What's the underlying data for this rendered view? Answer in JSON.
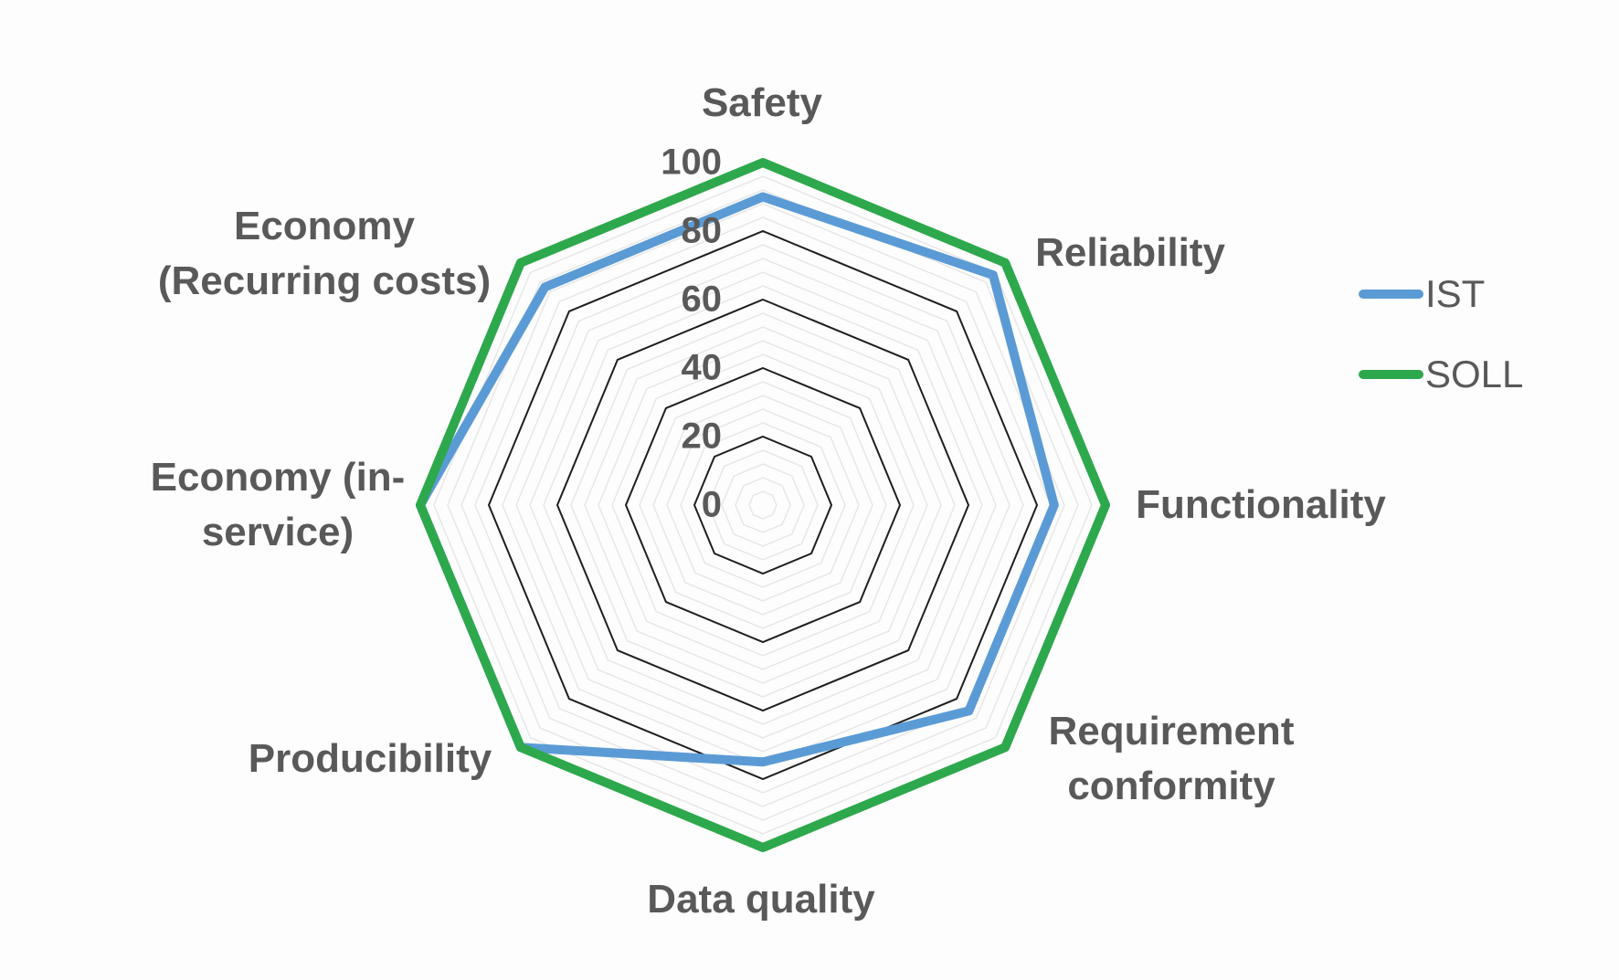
{
  "chart_data": {
    "type": "radar",
    "categories": [
      "Safety",
      "Reliability",
      "Functionality",
      "Requirement conformity",
      "Data quality",
      "Producibility",
      "Economy (in-service)",
      "Economy (Recurring costs)"
    ],
    "series": [
      {
        "name": "IST",
        "color": "#5b9bd5",
        "values": [
          90,
          95,
          85,
          85,
          75,
          100,
          100,
          90
        ]
      },
      {
        "name": "SOLL",
        "color": "#2ea84c",
        "values": [
          100,
          100,
          100,
          100,
          100,
          100,
          100,
          100
        ]
      }
    ],
    "axis": {
      "min": 0,
      "max": 100,
      "major_unit": 20,
      "minor_unit": 4,
      "tick_labels": [
        "0",
        "20",
        "40",
        "60",
        "80",
        "100"
      ]
    },
    "grid": "on",
    "legend_position": "right",
    "title": ""
  },
  "axis_labels": {
    "safety": {
      "line1": "Safety"
    },
    "reliability": {
      "line1": "Reliability"
    },
    "functionality": {
      "line1": "Functionality"
    },
    "requirement_conformity": {
      "line1": "Requirement",
      "line2": "conformity"
    },
    "data_quality": {
      "line1": "Data quality"
    },
    "producibility": {
      "line1": "Producibility"
    },
    "economy_in_service": {
      "line1": "Economy (in-",
      "line2": "service)"
    },
    "economy_recurring": {
      "line1": "Economy",
      "line2": "(Recurring costs)"
    }
  },
  "legend": {
    "ist_label": "IST",
    "soll_label": "SOLL"
  },
  "colors": {
    "ist": "#5b9bd5",
    "soll": "#2ea84c",
    "label_text": "#595959",
    "grid_major": "#1f1f1f",
    "grid_minor": "#e7e7e7",
    "background": "#fdfdfd"
  }
}
